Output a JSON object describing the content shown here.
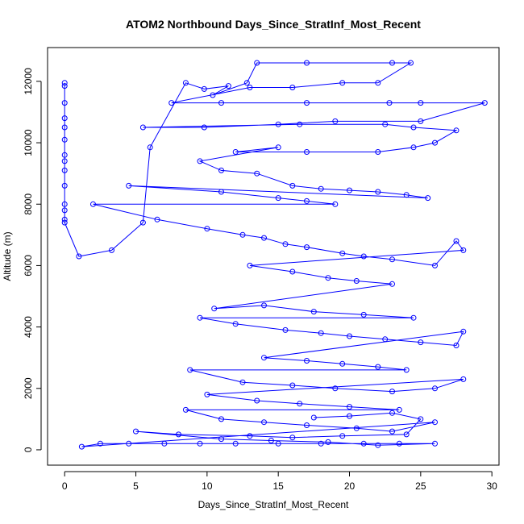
{
  "chart_data": {
    "type": "line",
    "title": "ATOM2 Northbound Days_Since_StratInf_Most_Recent",
    "xlabel": "Days_Since_StratInf_Most_Recent",
    "ylabel": "Altitude (m)",
    "xlim": [
      -1.2,
      30.5
    ],
    "ylim": [
      -500,
      13100
    ],
    "xticks": [
      0,
      5,
      10,
      15,
      20,
      25,
      30
    ],
    "yticks": [
      0,
      2000,
      4000,
      6000,
      8000,
      10000,
      12000
    ],
    "grid": false,
    "legend": "none",
    "series_color": "#0000ff",
    "marker": "open-circle",
    "series": [
      {
        "points": [
          [
            0.0,
            11950
          ],
          [
            0.0,
            11850
          ],
          [
            0.0,
            11300
          ],
          [
            0.0,
            10800
          ],
          [
            0.0,
            10500
          ],
          [
            0.0,
            10100
          ],
          [
            0.0,
            9600
          ],
          [
            0.0,
            9400
          ],
          [
            0.0,
            9100
          ],
          [
            0.0,
            8600
          ],
          [
            0.0,
            8000
          ],
          [
            0.0,
            7800
          ],
          [
            0.0,
            7500
          ],
          [
            0.0,
            7400
          ],
          [
            1.0,
            6300
          ],
          [
            3.3,
            6500
          ],
          [
            5.5,
            7400
          ],
          [
            6.0,
            9850
          ],
          [
            8.5,
            11950
          ],
          [
            9.8,
            11750
          ],
          [
            11.5,
            11850
          ],
          [
            10.4,
            11550
          ],
          [
            12.8,
            11950
          ],
          [
            13.5,
            12600
          ],
          [
            17.0,
            12600
          ],
          [
            23.0,
            12600
          ],
          [
            24.3,
            12600
          ],
          [
            22.0,
            11950
          ],
          [
            19.5,
            11950
          ],
          [
            16.0,
            11800
          ],
          [
            13.0,
            11800
          ],
          [
            7.5,
            11300
          ],
          [
            11.0,
            11300
          ],
          [
            17.0,
            11300
          ],
          [
            22.8,
            11300
          ],
          [
            25.0,
            11300
          ],
          [
            29.5,
            11300
          ],
          [
            25.0,
            10700
          ],
          [
            19.0,
            10700
          ],
          [
            15.0,
            10600
          ],
          [
            9.8,
            10500
          ],
          [
            5.5,
            10500
          ],
          [
            16.5,
            10600
          ],
          [
            22.5,
            10600
          ],
          [
            24.5,
            10500
          ],
          [
            27.5,
            10400
          ],
          [
            26.0,
            10000
          ],
          [
            24.5,
            9850
          ],
          [
            22.0,
            9700
          ],
          [
            17.0,
            9700
          ],
          [
            12.0,
            9700
          ],
          [
            15.0,
            9850
          ],
          [
            9.5,
            9400
          ],
          [
            11.0,
            9100
          ],
          [
            13.5,
            9000
          ],
          [
            16.0,
            8600
          ],
          [
            18.0,
            8500
          ],
          [
            20.0,
            8450
          ],
          [
            22.0,
            8400
          ],
          [
            24.0,
            8300
          ],
          [
            25.5,
            8200
          ],
          [
            4.5,
            8600
          ],
          [
            11.0,
            8400
          ],
          [
            15.0,
            8200
          ],
          [
            17.0,
            8100
          ],
          [
            19.0,
            8000
          ],
          [
            2.0,
            8000
          ],
          [
            6.5,
            7500
          ],
          [
            10.0,
            7200
          ],
          [
            12.5,
            7000
          ],
          [
            14.0,
            6900
          ],
          [
            15.5,
            6700
          ],
          [
            17.0,
            6600
          ],
          [
            19.5,
            6400
          ],
          [
            21.0,
            6300
          ],
          [
            23.0,
            6200
          ],
          [
            26.0,
            6000
          ],
          [
            27.5,
            6800
          ],
          [
            28.0,
            6500
          ],
          [
            13.0,
            6000
          ],
          [
            16.0,
            5800
          ],
          [
            18.5,
            5600
          ],
          [
            20.5,
            5500
          ],
          [
            23.0,
            5400
          ],
          [
            10.5,
            4600
          ],
          [
            14.0,
            4700
          ],
          [
            17.5,
            4500
          ],
          [
            21.0,
            4400
          ],
          [
            24.5,
            4300
          ],
          [
            9.5,
            4300
          ],
          [
            12.0,
            4100
          ],
          [
            15.5,
            3900
          ],
          [
            18.0,
            3800
          ],
          [
            20.0,
            3700
          ],
          [
            22.5,
            3600
          ],
          [
            25.0,
            3500
          ],
          [
            27.5,
            3400
          ],
          [
            28.0,
            3850
          ],
          [
            14.0,
            3000
          ],
          [
            17.0,
            2900
          ],
          [
            19.5,
            2800
          ],
          [
            22.0,
            2700
          ],
          [
            24.0,
            2600
          ],
          [
            8.8,
            2600
          ],
          [
            12.5,
            2200
          ],
          [
            16.0,
            2100
          ],
          [
            19.0,
            2000
          ],
          [
            23.0,
            1900
          ],
          [
            26.0,
            2000
          ],
          [
            28.0,
            2300
          ],
          [
            10.0,
            1800
          ],
          [
            13.5,
            1600
          ],
          [
            16.5,
            1500
          ],
          [
            20.0,
            1400
          ],
          [
            23.5,
            1300
          ],
          [
            8.5,
            1300
          ],
          [
            11.0,
            1000
          ],
          [
            14.0,
            900
          ],
          [
            17.0,
            800
          ],
          [
            20.5,
            700
          ],
          [
            23.0,
            600
          ],
          [
            26.0,
            900
          ],
          [
            1.2,
            100
          ],
          [
            2.5,
            200
          ],
          [
            4.5,
            200
          ],
          [
            7.0,
            200
          ],
          [
            9.5,
            200
          ],
          [
            12.0,
            200
          ],
          [
            15.0,
            200
          ],
          [
            18.0,
            200
          ],
          [
            21.0,
            200
          ],
          [
            23.5,
            200
          ],
          [
            26.0,
            200
          ],
          [
            22.0,
            150
          ],
          [
            18.5,
            250
          ],
          [
            14.5,
            300
          ],
          [
            11.0,
            350
          ],
          [
            5.0,
            600
          ],
          [
            8.0,
            500
          ],
          [
            13.0,
            450
          ],
          [
            16.0,
            400
          ],
          [
            19.5,
            450
          ],
          [
            24.0,
            500
          ],
          [
            25.0,
            1000
          ],
          [
            23.0,
            1200
          ],
          [
            20.0,
            1100
          ],
          [
            17.5,
            1050
          ]
        ]
      }
    ]
  }
}
